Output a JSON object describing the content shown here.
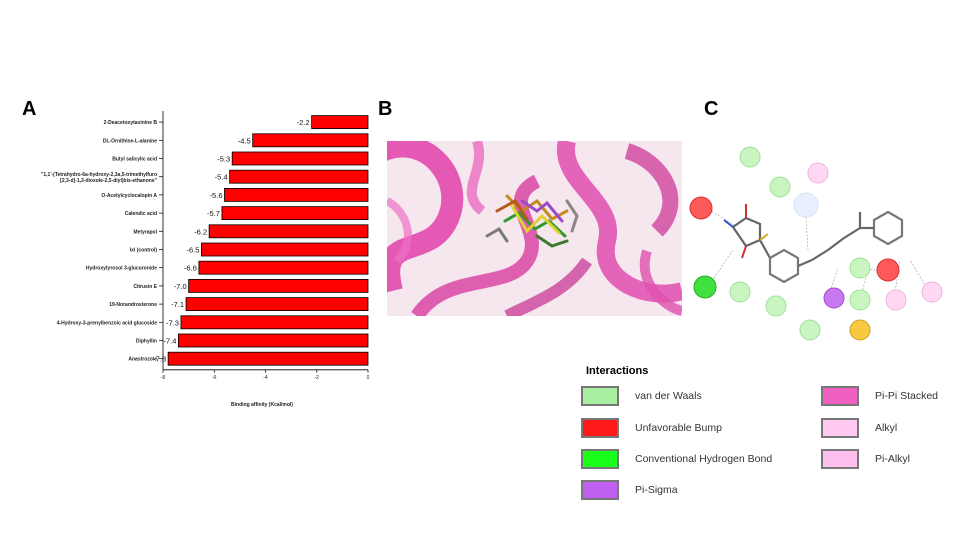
{
  "panels": {
    "a": "A",
    "b": "B",
    "c": "C"
  },
  "chart_data": {
    "type": "bar",
    "orientation": "horizontal",
    "categories": [
      "2-Deacetoxytaxinine B",
      "DL-Ornithine-L-alanine",
      "Butyl salicylic acid",
      "\"1,1'-(Tetrahydro-6a-hydroxy-2,3a,5-trimethylfuro [2,3-d]-1,3-dioxole-2,5-diyl)bis-ethanone\"",
      "O-Acetylcyclocalopin A",
      "Calendic acid",
      "Metyrapol",
      "Ixl (control)",
      "Hydroxytyrosol 3-glucuronide",
      "Citrusin E",
      "19-Norandrosterone",
      "4-Hydroxy-3-prenylbenzoic acid glucoside",
      "Diphyllin",
      "Anastrozole"
    ],
    "values": [
      -2.2,
      -4.5,
      -5.3,
      -5.4,
      -5.6,
      -5.7,
      -6.2,
      -6.5,
      -6.6,
      -7.0,
      -7.1,
      -7.3,
      -7.4,
      -7.8
    ],
    "value_labels": [
      "-2.2",
      "-4.5",
      "-5.3",
      "-5.4",
      "-5.6",
      "-5.7",
      "-6.2",
      "-6.5",
      "-6.6",
      "-7.0",
      "-7.1",
      "-7.3",
      "-7.4",
      "-7.8"
    ],
    "xlabel": "Binding affinity (Kcal/mol)",
    "xlim": [
      -8,
      0
    ],
    "xticks": [
      "-8",
      "-6",
      "-4",
      "-2",
      "0"
    ],
    "bar_color": "#ff0000"
  },
  "legend": {
    "title": "Interactions",
    "items": [
      {
        "label": "van der Waals",
        "color": "#a8f0a0"
      },
      {
        "label": "Unfavorable Bump",
        "color": "#ff1a1a"
      },
      {
        "label": "Conventional Hydrogen Bond",
        "color": "#1aff1a"
      },
      {
        "label": "Pi-Sigma",
        "color": "#c060f0"
      },
      {
        "label": "Pi-Pi Stacked",
        "color": "#f060c0"
      },
      {
        "label": "Alkyl",
        "color": "#ffc8f0"
      },
      {
        "label": "Pi-Alkyl",
        "color": "#ffc0f0"
      }
    ]
  }
}
